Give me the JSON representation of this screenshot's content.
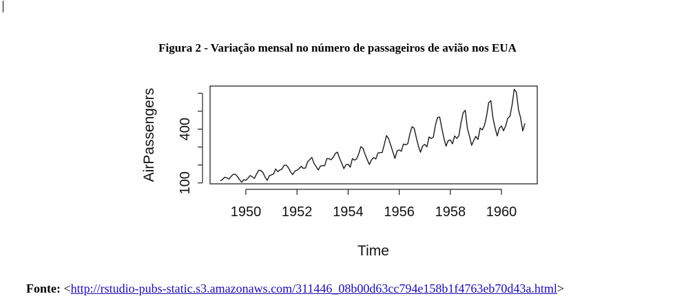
{
  "figure": {
    "caption": "Figura 2 - Variação mensal no número de passageiros de avião nos EUA"
  },
  "source": {
    "label": "Fonte:",
    "open": " <",
    "url": "http://rstudio-pubs-static.s3.amazonaws.com/311446_08b00d63cc794e158b1f4763eb70d43a.html",
    "close": ">"
  },
  "chart_data": {
    "type": "line",
    "xlabel": "Time",
    "ylabel": "AirPassengers",
    "x_ticks": [
      1950,
      1952,
      1954,
      1956,
      1958,
      1960
    ],
    "y_ticks": [
      100,
      200,
      300,
      400,
      500,
      600
    ],
    "y_tick_labels": [
      "100",
      "",
      "",
      "400",
      "",
      ""
    ],
    "xlim": [
      1948.6,
      1961.4
    ],
    "ylim": [
      95,
      640
    ],
    "grid": false,
    "x_start": 1949,
    "x_step": 0.0833333,
    "series": [
      {
        "values": [
          112,
          118,
          132,
          129,
          121,
          135,
          148,
          148,
          136,
          119,
          104,
          118,
          115,
          126,
          141,
          135,
          125,
          149,
          170,
          170,
          158,
          133,
          114,
          140,
          145,
          150,
          178,
          163,
          172,
          178,
          199,
          199,
          184,
          162,
          146,
          166,
          171,
          180,
          193,
          181,
          183,
          218,
          230,
          242,
          209,
          191,
          172,
          194,
          196,
          196,
          236,
          235,
          229,
          243,
          264,
          272,
          237,
          211,
          180,
          201,
          204,
          188,
          235,
          227,
          234,
          264,
          302,
          293,
          259,
          229,
          203,
          229,
          242,
          233,
          267,
          269,
          270,
          315,
          364,
          347,
          312,
          274,
          237,
          278,
          284,
          277,
          317,
          313,
          318,
          374,
          413,
          405,
          355,
          306,
          271,
          306,
          315,
          301,
          356,
          348,
          355,
          422,
          465,
          467,
          404,
          347,
          305,
          336,
          340,
          318,
          362,
          348,
          363,
          435,
          491,
          505,
          404,
          359,
          310,
          337,
          360,
          342,
          406,
          396,
          420,
          472,
          548,
          559,
          463,
          407,
          362,
          405,
          417,
          391,
          419,
          461,
          472,
          535,
          622,
          606,
          508,
          461,
          390,
          432
        ]
      }
    ]
  }
}
